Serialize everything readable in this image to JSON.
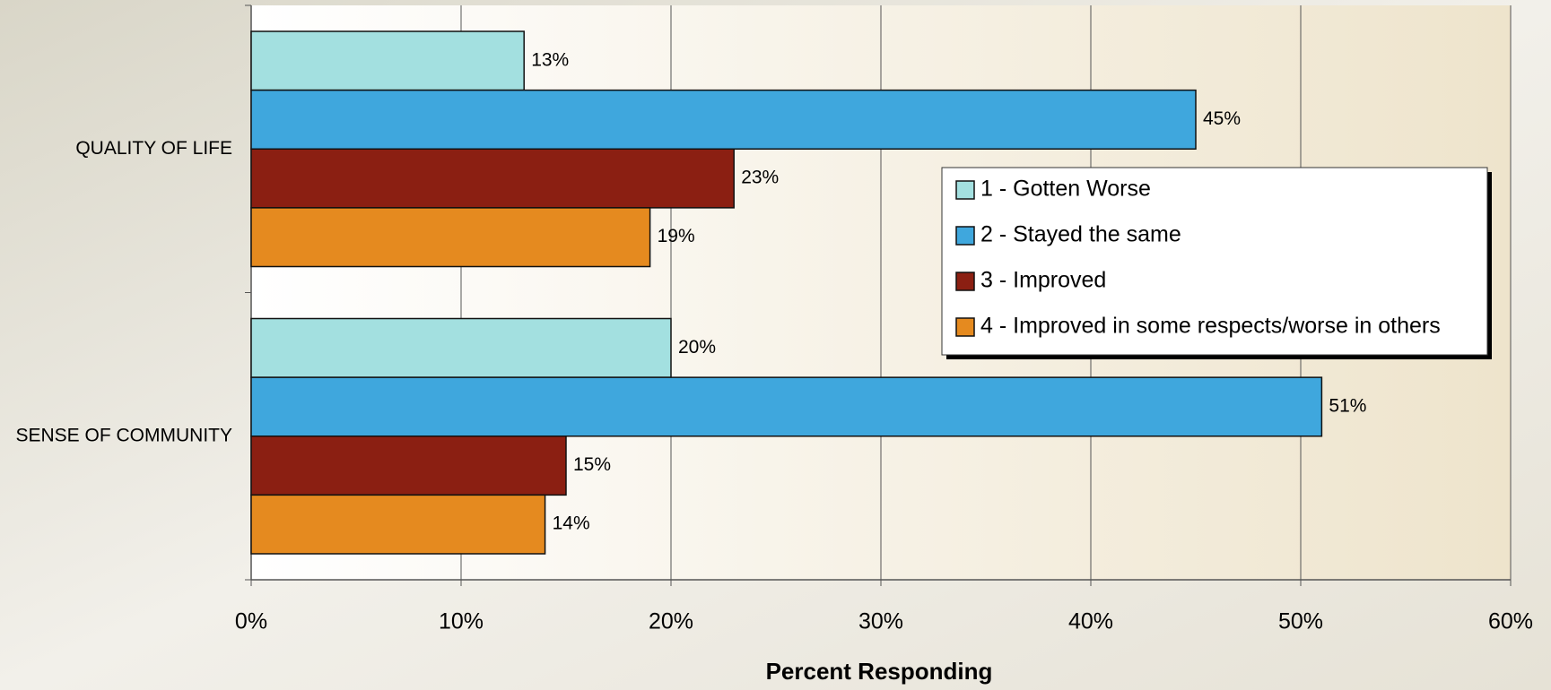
{
  "chart_data": {
    "type": "barh",
    "xlabel": "Percent Responding",
    "categories": [
      "QUALITY OF LIFE",
      "SENSE OF COMMUNITY"
    ],
    "series": [
      {
        "name": "1 - Gotten Worse",
        "color": "#a3e0e0",
        "values": [
          13,
          20
        ],
        "value_labels": [
          "13%",
          "20%"
        ]
      },
      {
        "name": "2 - Stayed the same",
        "color": "#3fa7dd",
        "values": [
          45,
          51
        ],
        "value_labels": [
          "45%",
          "51%"
        ]
      },
      {
        "name": "3 - Improved",
        "color": "#8b1f12",
        "values": [
          23,
          15
        ],
        "value_labels": [
          "23%",
          "15%"
        ]
      },
      {
        "name": "4 - Improved in some respects/worse in others",
        "color": "#e58a1f",
        "values": [
          19,
          14
        ],
        "value_labels": [
          "19%",
          "14%"
        ]
      }
    ],
    "xlim": [
      0,
      60
    ],
    "xticks": [
      {
        "value": 0,
        "label": "0%"
      },
      {
        "value": 10,
        "label": "10%"
      },
      {
        "value": 20,
        "label": "20%"
      },
      {
        "value": 30,
        "label": "30%"
      },
      {
        "value": 40,
        "label": "40%"
      },
      {
        "value": 50,
        "label": "50%"
      },
      {
        "value": 60,
        "label": "60%"
      }
    ],
    "grid": true,
    "legend_position": "right"
  }
}
